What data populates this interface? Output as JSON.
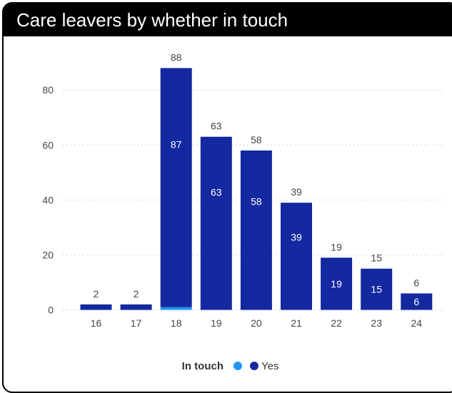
{
  "header": {
    "title": "Care leavers by whether in touch"
  },
  "colors": {
    "yes": "#1428a0",
    "no": "#2196f3",
    "grid": "#cccccc"
  },
  "chart_data": {
    "type": "bar",
    "stacked": true,
    "title": "Care leavers by whether in touch",
    "xlabel": "",
    "ylabel": "",
    "categories": [
      "16",
      "17",
      "18",
      "19",
      "20",
      "21",
      "22",
      "23",
      "24"
    ],
    "series": [
      {
        "name": "Yes",
        "values": [
          2,
          2,
          87,
          63,
          58,
          39,
          19,
          15,
          6
        ]
      }
    ],
    "unnamed_series_values": [
      0,
      0,
      1,
      0,
      0,
      0,
      0,
      0,
      0
    ],
    "totals": [
      2,
      2,
      88,
      63,
      58,
      39,
      19,
      15,
      6
    ],
    "inner_labels": [
      null,
      null,
      87,
      63,
      58,
      39,
      19,
      15,
      6
    ],
    "ylim": [
      0,
      92
    ],
    "yticks": [
      0,
      20,
      40,
      60,
      80
    ],
    "grid": true,
    "legend": {
      "title": "In touch",
      "placement": "bottom",
      "entries": [
        "",
        "Yes"
      ]
    }
  }
}
